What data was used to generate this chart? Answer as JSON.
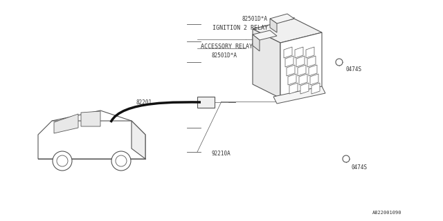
{
  "background_color": "#ffffff",
  "fig_width": 6.4,
  "fig_height": 3.2,
  "dpi": 100,
  "line_color": "#555555",
  "text_color": "#333333",
  "car_outline_color": "#555555",
  "diagram_bg": "#f5f5f5",
  "labels": {
    "ignition_part": "82501D*A",
    "ignition_label": "IGNITION 2 RELAY",
    "accessory_label": "ACCESSORY RELAY",
    "accessory_part": "82501D*A",
    "wire_label": "82201",
    "fuse_box_label": "92210A",
    "bolt1_label": "0474S",
    "bolt2_label": "0474S",
    "footer": "A822001090"
  },
  "font_size_small": 5.5,
  "font_size_medium": 6.5,
  "font_family": "monospace"
}
